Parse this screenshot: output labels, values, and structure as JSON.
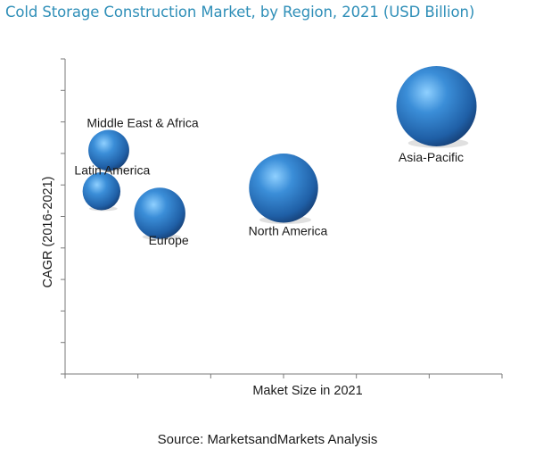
{
  "title": "Cold Storage Construction Market, by Region, 2021 (USD Billion)",
  "source": "Source: MarketsandMarkets Analysis",
  "chart_data": {
    "type": "scatter",
    "subtype": "bubble",
    "xlabel": "Maket Size in 2021",
    "ylabel": "CAGR (2016-2021)",
    "xlim": [
      0,
      6
    ],
    "ylim": [
      0,
      10
    ],
    "x_ticks": 6,
    "y_ticks": 10,
    "grid": false,
    "legend": "none",
    "bubble_color": "#2e6db4",
    "points": [
      {
        "label": "Middle East & Africa",
        "x": 0.6,
        "y": 7.1,
        "size": 0.35
      },
      {
        "label": "Latin America",
        "x": 0.5,
        "y": 5.8,
        "size": 0.3
      },
      {
        "label": "Europe",
        "x": 1.3,
        "y": 5.1,
        "size": 0.55
      },
      {
        "label": "North America",
        "x": 3.0,
        "y": 5.9,
        "size": 1.0
      },
      {
        "label": "Asia-Pacific",
        "x": 5.1,
        "y": 8.5,
        "size": 1.35
      }
    ]
  }
}
